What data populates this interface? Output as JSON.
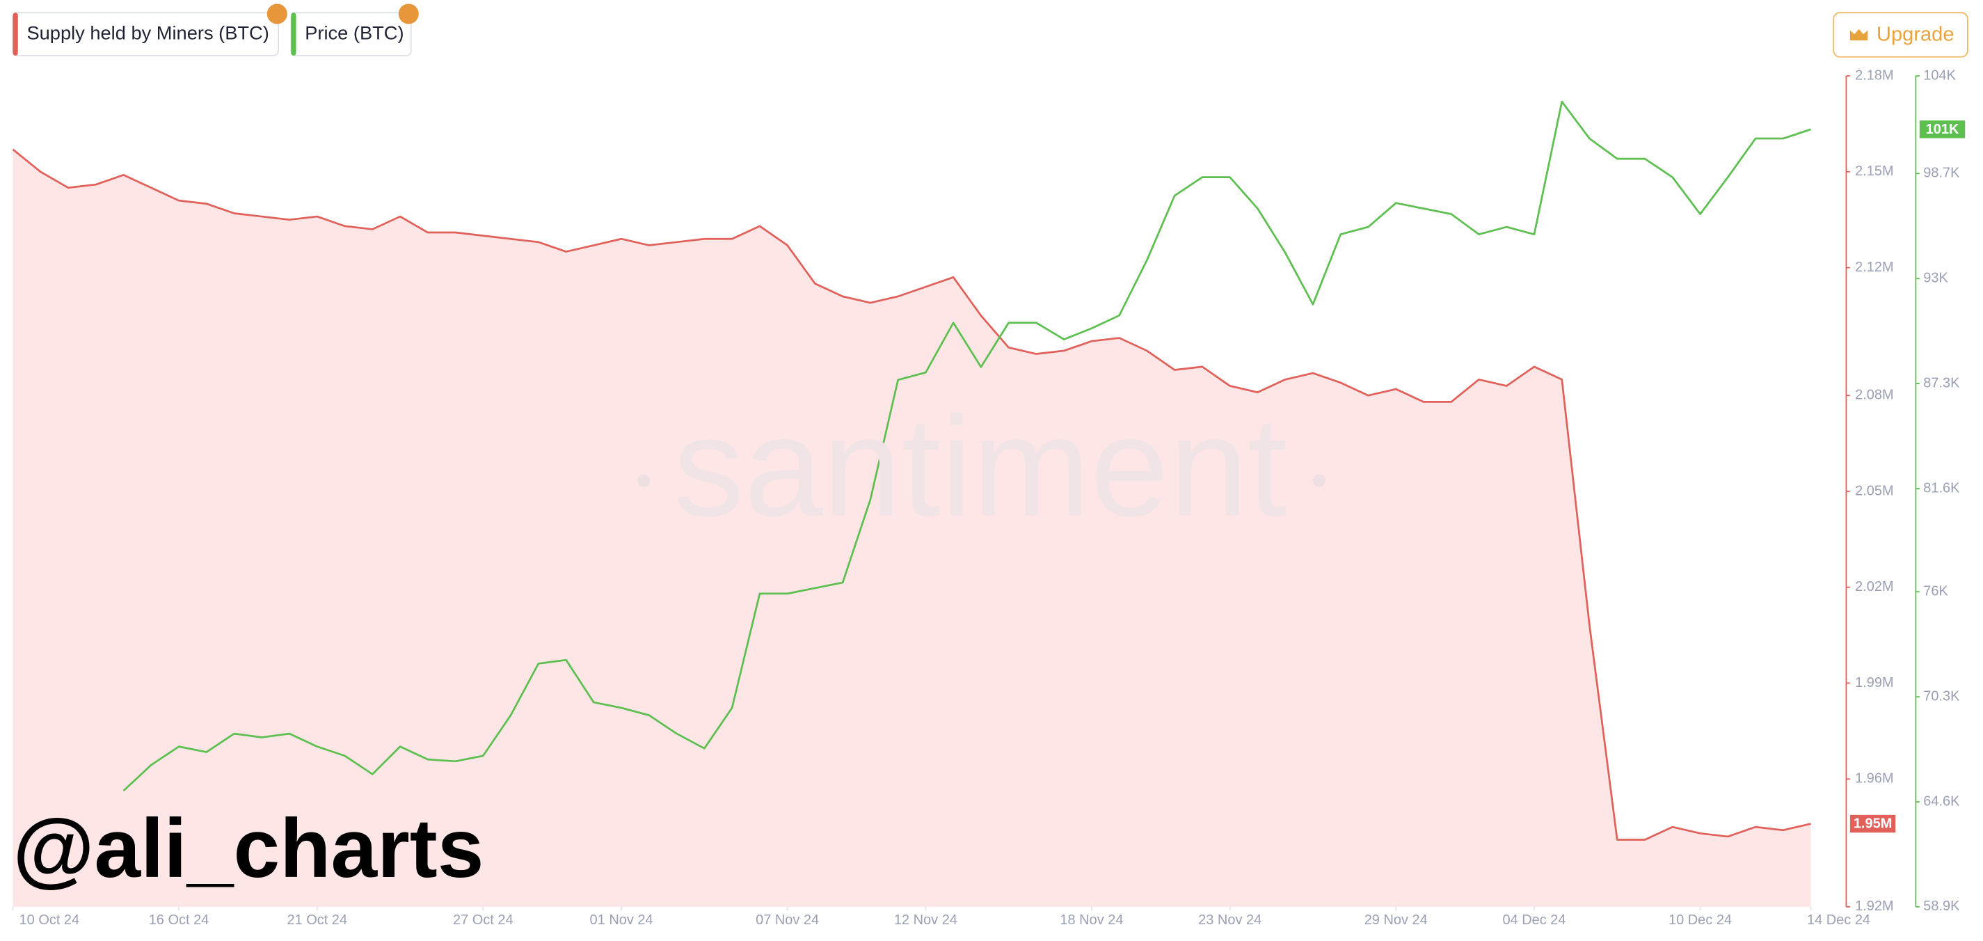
{
  "ui": {
    "button": "Upgrade"
  },
  "chart_data": {
    "type": "line",
    "watermark": "santiment",
    "annotations": [
      "@ali_charts"
    ],
    "x": [
      "2024-10-10",
      "2024-10-11",
      "2024-10-12",
      "2024-10-13",
      "2024-10-14",
      "2024-10-15",
      "2024-10-16",
      "2024-10-17",
      "2024-10-18",
      "2024-10-19",
      "2024-10-20",
      "2024-10-21",
      "2024-10-22",
      "2024-10-23",
      "2024-10-24",
      "2024-10-25",
      "2024-10-26",
      "2024-10-27",
      "2024-10-28",
      "2024-10-29",
      "2024-10-30",
      "2024-10-31",
      "2024-11-01",
      "2024-11-02",
      "2024-11-03",
      "2024-11-04",
      "2024-11-05",
      "2024-11-06",
      "2024-11-07",
      "2024-11-08",
      "2024-11-09",
      "2024-11-10",
      "2024-11-11",
      "2024-11-12",
      "2024-11-13",
      "2024-11-14",
      "2024-11-15",
      "2024-11-16",
      "2024-11-17",
      "2024-11-18",
      "2024-11-19",
      "2024-11-20",
      "2024-11-21",
      "2024-11-22",
      "2024-11-23",
      "2024-11-24",
      "2024-11-25",
      "2024-11-26",
      "2024-11-27",
      "2024-11-28",
      "2024-11-29",
      "2024-11-30",
      "2024-12-01",
      "2024-12-02",
      "2024-12-03",
      "2024-12-04",
      "2024-12-05",
      "2024-12-06",
      "2024-12-07",
      "2024-12-08",
      "2024-12-09",
      "2024-12-10",
      "2024-12-11",
      "2024-12-12",
      "2024-12-13",
      "2024-12-14"
    ],
    "xlim": [
      "2024-10-10",
      "2024-12-14"
    ],
    "xticks": [
      {
        "value": "2024-10-10",
        "label": "10 Oct 24"
      },
      {
        "value": "2024-10-16",
        "label": "16 Oct 24"
      },
      {
        "value": "2024-10-21",
        "label": "21 Oct 24"
      },
      {
        "value": "2024-10-27",
        "label": "27 Oct 24"
      },
      {
        "value": "2024-11-01",
        "label": "01 Nov 24"
      },
      {
        "value": "2024-11-07",
        "label": "07 Nov 24"
      },
      {
        "value": "2024-11-12",
        "label": "12 Nov 24"
      },
      {
        "value": "2024-11-18",
        "label": "18 Nov 24"
      },
      {
        "value": "2024-11-23",
        "label": "23 Nov 24"
      },
      {
        "value": "2024-11-29",
        "label": "29 Nov 24"
      },
      {
        "value": "2024-12-04",
        "label": "04 Dec 24"
      },
      {
        "value": "2024-12-10",
        "label": "10 Dec 24"
      },
      {
        "value": "2024-12-14",
        "label": "14 Dec 24"
      }
    ],
    "ylim": [
      1920000,
      2180000
    ],
    "yticks": [
      {
        "value": 1920000,
        "label": "1.92M"
      },
      {
        "value": 1960000,
        "label": "1.96M"
      },
      {
        "value": 1990000,
        "label": "1.99M"
      },
      {
        "value": 2020000,
        "label": "2.02M"
      },
      {
        "value": 2050000,
        "label": "2.05M"
      },
      {
        "value": 2080000,
        "label": "2.08M"
      },
      {
        "value": 2120000,
        "label": "2.12M"
      },
      {
        "value": 2150000,
        "label": "2.15M"
      },
      {
        "value": 2180000,
        "label": "2.18M"
      }
    ],
    "y2lim": [
      58900,
      104000
    ],
    "y2ticks": [
      {
        "value": 58900,
        "label": "58.9K"
      },
      {
        "value": 64600,
        "label": "64.6K"
      },
      {
        "value": 70300,
        "label": "70.3K"
      },
      {
        "value": 76000,
        "label": "76K"
      },
      {
        "value": 81600,
        "label": "81.6K"
      },
      {
        "value": 87300,
        "label": "87.3K"
      },
      {
        "value": 93000,
        "label": "93K"
      },
      {
        "value": 98700,
        "label": "98.7K"
      },
      {
        "value": 104000,
        "label": "104K"
      }
    ],
    "series": [
      {
        "name": "Supply held by Miners (BTC)",
        "color": "#e2605a",
        "axis": "y",
        "area": true,
        "last_value_label": "1.95M",
        "values": [
          2157000,
          2150000,
          2145000,
          2146000,
          2149000,
          2145000,
          2141000,
          2140000,
          2137000,
          2136000,
          2135000,
          2136000,
          2133000,
          2132000,
          2136000,
          2131000,
          2131000,
          2130000,
          2129000,
          2128000,
          2125000,
          2127000,
          2129000,
          2127000,
          2128000,
          2129000,
          2129000,
          2133000,
          2127000,
          2115000,
          2111000,
          2109000,
          2111000,
          2114000,
          2117000,
          2105000,
          2095000,
          2093000,
          2094000,
          2097000,
          2098000,
          2094000,
          2088000,
          2089000,
          2083000,
          2081000,
          2085000,
          2087000,
          2084000,
          2080000,
          2082000,
          2078000,
          2078000,
          2085000,
          2083000,
          2089000,
          2085000,
          2008000,
          1941000,
          1941000,
          1945000,
          1943000,
          1942000,
          1945000,
          1944000,
          1946000
        ]
      },
      {
        "name": "Price (BTC)",
        "color": "#5cbf4f",
        "axis": "y2",
        "area": false,
        "last_value_label": "101K",
        "values": [
          null,
          null,
          null,
          null,
          65200,
          66600,
          67600,
          67300,
          68300,
          68100,
          68300,
          67600,
          67100,
          66100,
          67600,
          66900,
          66800,
          67100,
          69300,
          72100,
          72300,
          70000,
          69700,
          69300,
          68300,
          67500,
          69700,
          75900,
          75900,
          76200,
          76500,
          81000,
          87500,
          87900,
          90600,
          88200,
          90600,
          90600,
          89700,
          90300,
          91000,
          94000,
          97500,
          98500,
          98500,
          96800,
          94400,
          91600,
          95400,
          95800,
          97100,
          96800,
          96500,
          95400,
          95800,
          95400,
          102600,
          100600,
          99500,
          99500,
          98500,
          96500,
          98500,
          100600,
          100600,
          101100
        ]
      }
    ]
  }
}
